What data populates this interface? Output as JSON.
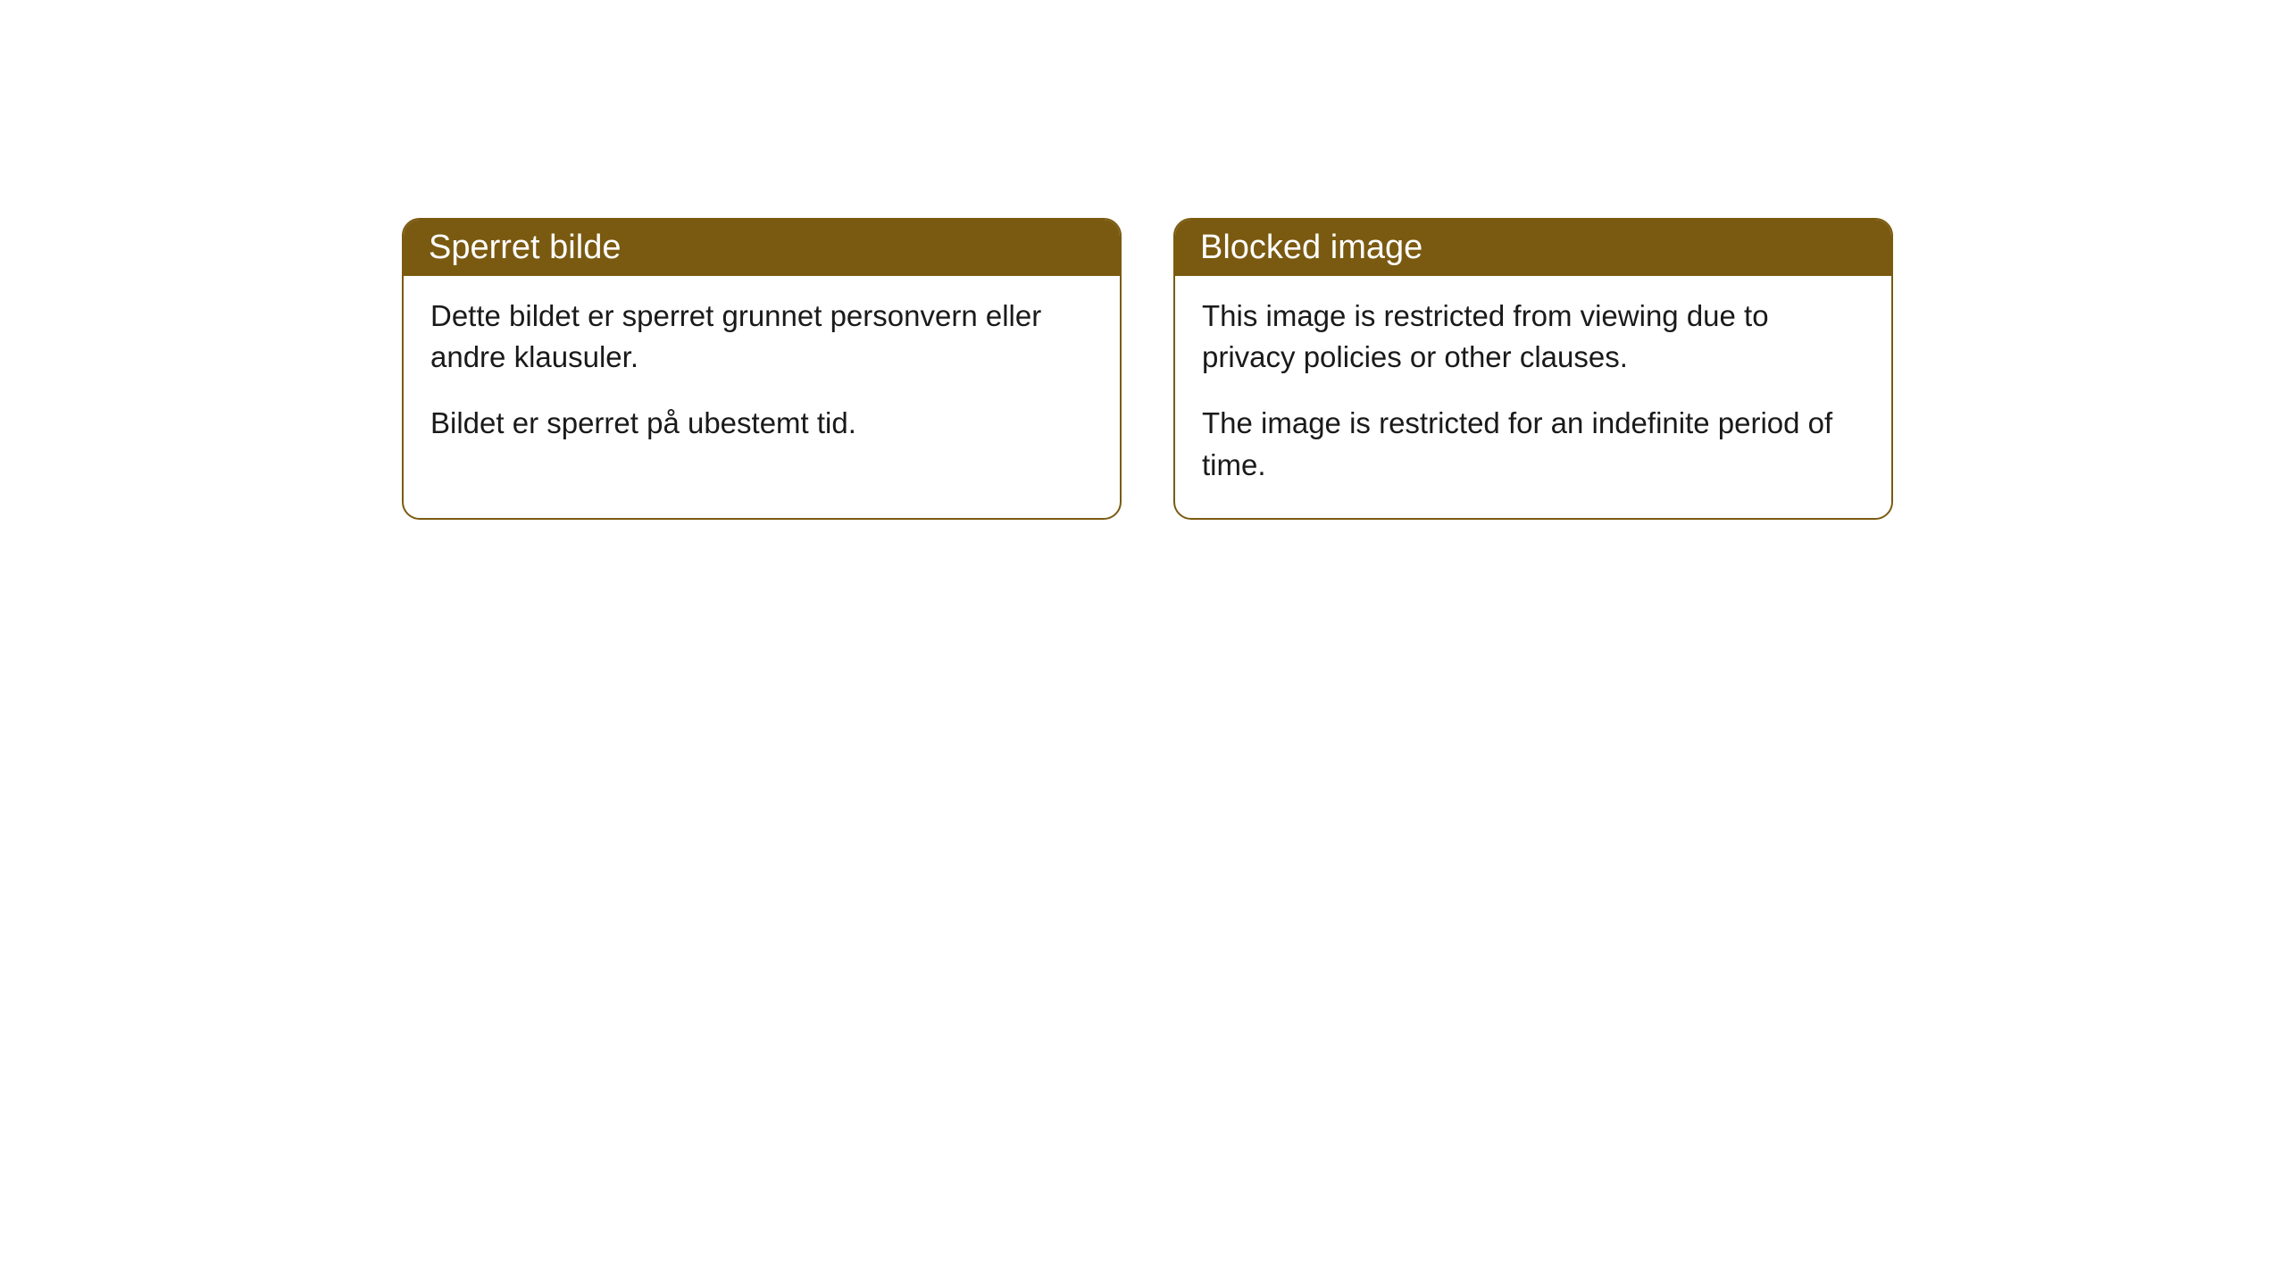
{
  "cards": [
    {
      "title": "Sperret bilde",
      "paragraph1": "Dette bildet er sperret grunnet personvern eller andre klausuler.",
      "paragraph2": "Bildet er sperret på ubestemt tid."
    },
    {
      "title": "Blocked image",
      "paragraph1": "This image is restricted from viewing due to privacy policies or other clauses.",
      "paragraph2": "The image is restricted for an indefinite period of time."
    }
  ],
  "style": {
    "header_background": "#7a5a11",
    "header_text_color": "#ffffff",
    "border_color": "#7a5a11",
    "body_background": "#ffffff",
    "body_text_color": "#1a1a1a",
    "border_radius": 20,
    "title_fontsize": 38,
    "body_fontsize": 33
  }
}
